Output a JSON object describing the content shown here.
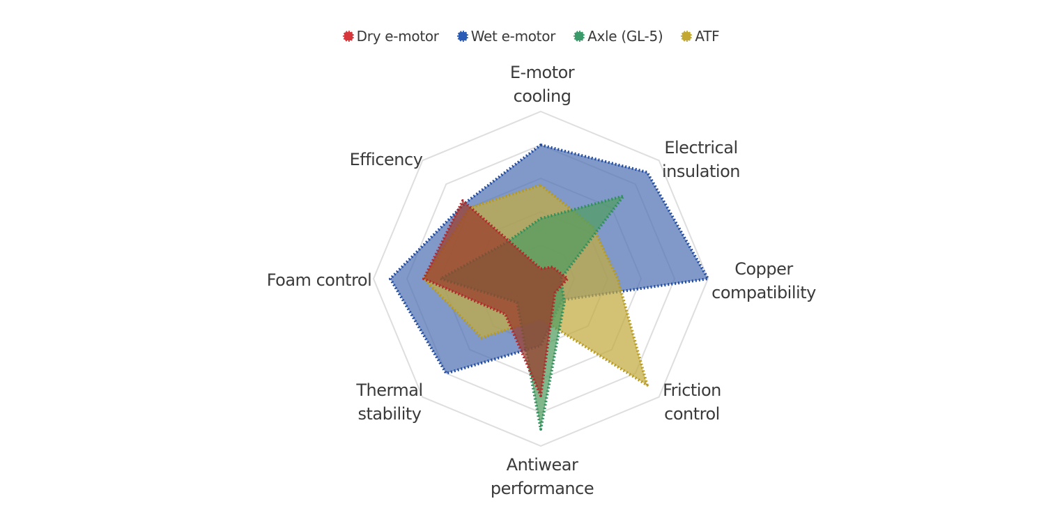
{
  "chart_data": {
    "type": "radar",
    "title": "",
    "axes": [
      {
        "label_lines": [
          "E-motor",
          "cooling"
        ]
      },
      {
        "label_lines": [
          "Electrical",
          "insulation"
        ]
      },
      {
        "label_lines": [
          "Copper",
          "compatibility"
        ]
      },
      {
        "label_lines": [
          "Friction",
          "control"
        ]
      },
      {
        "label_lines": [
          "Antiwear",
          "performance"
        ]
      },
      {
        "label_lines": [
          "Thermal",
          "stability"
        ]
      },
      {
        "label_lines": [
          "Foam control"
        ]
      },
      {
        "label_lines": [
          "Efficency"
        ]
      }
    ],
    "r_max": 5,
    "grid_levels": 5,
    "grid": true,
    "legend_position": "top",
    "series": [
      {
        "name": "Wet e-motor",
        "color": "#1f4aa0",
        "fill": "#4f72b4",
        "values": [
          4.0,
          4.5,
          5.0,
          0.9,
          2.0,
          4.0,
          4.5,
          3.2
        ]
      },
      {
        "name": "ATF",
        "color": "#b89a1c",
        "fill": "#c2ab3e",
        "values": [
          2.8,
          2.2,
          2.3,
          4.5,
          1.2,
          2.5,
          3.5,
          3.0
        ]
      },
      {
        "name": "Axle (GL-5)",
        "color": "#2f8f5c",
        "fill": "#4f9c60",
        "values": [
          1.8,
          3.5,
          0.6,
          1.0,
          4.5,
          1.0,
          3.0,
          1.5
        ]
      },
      {
        "name": "Dry e-motor",
        "color": "#b3262a",
        "fill": "#9a3a2a",
        "values": [
          0.3,
          0.5,
          0.8,
          0.6,
          3.5,
          1.5,
          3.5,
          3.3
        ]
      }
    ],
    "legend": [
      {
        "name": "Dry e-motor",
        "color": "#d6373b"
      },
      {
        "name": "Wet e-motor",
        "color": "#2a5bb5"
      },
      {
        "name": "Axle (GL-5)",
        "color": "#3a9a6a"
      },
      {
        "name": "ATF",
        "color": "#c2a832"
      }
    ]
  }
}
